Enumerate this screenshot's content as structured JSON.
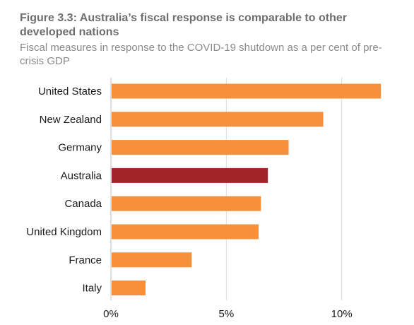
{
  "header": {
    "title": "Figure 3.3: Australia’s fiscal response is comparable to other developed nations",
    "subtitle": "Fiscal measures in response to the COVID-19 shutdown as a per cent of pre-crisis GDP"
  },
  "chart_data": {
    "type": "bar",
    "orientation": "horizontal",
    "categories": [
      "United States",
      "New Zealand",
      "Germany",
      "Australia",
      "Canada",
      "United Kingdom",
      "France",
      "Italy"
    ],
    "values": [
      11.7,
      9.2,
      7.7,
      6.8,
      6.5,
      6.4,
      3.5,
      1.5
    ],
    "highlight": "Australia",
    "xlim": [
      0,
      12
    ],
    "xticks": [
      0,
      5,
      10
    ],
    "xtick_labels": [
      "0%",
      "5%",
      "10%"
    ],
    "grid": "vertical",
    "colors": {
      "bar": "#f7903a",
      "highlight": "#a3252a",
      "grid": "#d9d9d9",
      "axis": "#bfbfbf"
    }
  }
}
